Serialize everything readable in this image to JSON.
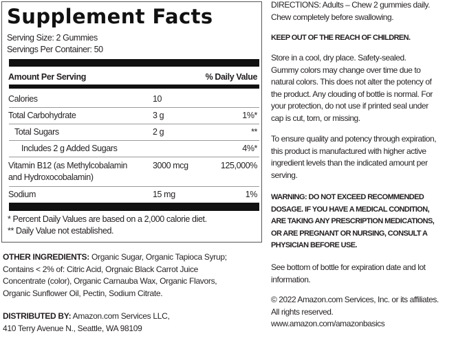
{
  "facts": {
    "title": "Supplement Facts",
    "serving_size": "Serving Size: 2 Gummies",
    "servings_per_container": "Servings Per Container: 50",
    "header_amount": "Amount Per Serving",
    "header_dv": "% Daily Value",
    "rows": [
      {
        "name": "Calories",
        "amount": "10",
        "dv": ""
      },
      {
        "name": "Total Carbohydrate",
        "amount": "3 g",
        "dv": "1%*"
      },
      {
        "name": "Total Sugars",
        "amount": "2 g",
        "dv": "**"
      },
      {
        "name": "Includes 2 g Added Sugars",
        "amount": "",
        "dv": "4%*"
      },
      {
        "name": "Vitamin B12 (as Methylcobalamin",
        "name2": "and Hydroxocobalamin)",
        "amount": "3000 mcg",
        "dv": "125,000%"
      },
      {
        "name": "Sodium",
        "amount": "15 mg",
        "dv": "1%"
      }
    ],
    "footnote1": "* Percent Daily Values are based on a 2,000 calorie diet.",
    "footnote2": "** Daily Value not established."
  },
  "left": {
    "ingredients_label": "OTHER INGREDIENTS:",
    "ingredients": [
      " Organic Sugar, Organic Tapioca Syrup;",
      "Contains < 2% of: Citric Acid, Orgnaic Black Carrot Juice",
      "Concentrate (color), Organic Carnauba Wax, Organic Flavors,",
      "Organic Sunflower Oil, Pectin, Sodium Citrate."
    ],
    "distributed_label": "DISTRIBUTED BY:",
    "distributed": [
      " Amazon.com Services LLC,",
      "410 Terry Avenue N., Seattle, WA 98109"
    ]
  },
  "right": {
    "paragraphs": [
      {
        "bold": false,
        "lines": [
          "DIRECTIONS: Adults – Chew 2 gummies daily.",
          "Chew completely before swallowing."
        ]
      },
      {
        "bold": true,
        "lines": [
          "KEEP OUT OF THE REACH OF CHILDREN."
        ]
      },
      {
        "bold": false,
        "lines": [
          "Store in a cool, dry place. Safety-sealed.",
          "Gummy colors may change over time due to",
          "natural colors. This does not alter the potency of",
          "the product. Any clouding of bottle is normal. For",
          "your protection, do not use if printed seal under",
          "cap is cut, torn, or missing."
        ]
      },
      {
        "bold": false,
        "lines": [
          "To ensure quality and potency through expiration,",
          "this product is manufactured with higher active",
          "ingredient levels than the indicated amount per",
          "serving."
        ]
      },
      {
        "bold": true,
        "lines": [
          "WARNING:  DO NOT EXCEED RECOMMENDED",
          "DOSAGE. IF YOU HAVE A MEDICAL CONDITION,",
          "ARE TAKING ANY PRESCRIPTION MEDICATIONS,",
          "OR ARE PREGNANT OR NURSING, CONSULT A",
          "PHYSICIAN BEFORE USE."
        ]
      },
      {
        "bold": false,
        "lines": [
          "See bottom of bottle for expiration date and lot",
          "information."
        ]
      },
      {
        "bold": false,
        "lines": [
          "© 2022 Amazon.com Services, Inc. or its affiliates.",
          "All rights reserved.",
          "www.amazon.com/amazonbasics"
        ]
      }
    ]
  }
}
